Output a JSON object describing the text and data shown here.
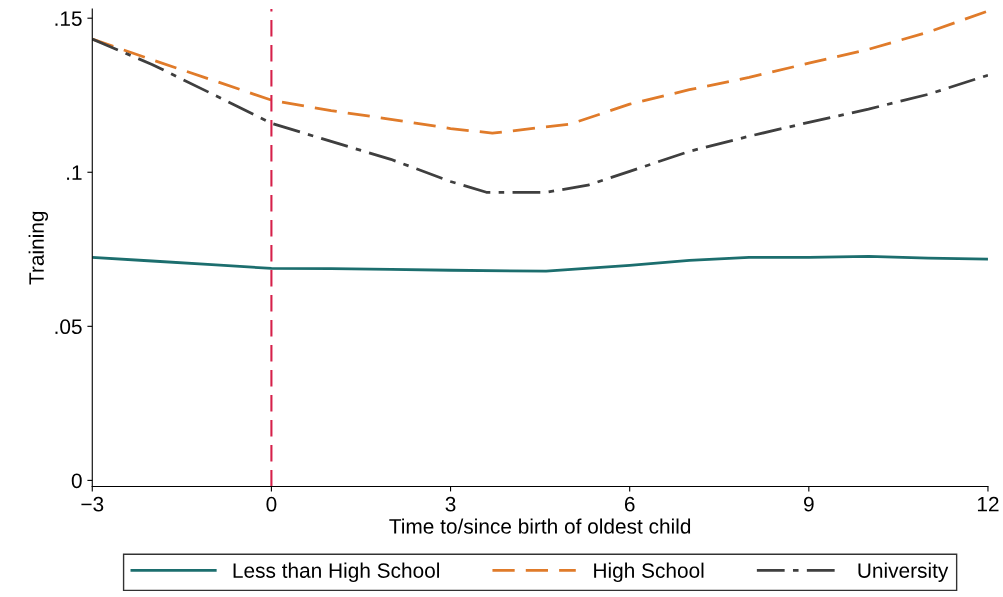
{
  "chart_data": {
    "type": "line",
    "xlabel": "Time to/since birth of oldest child",
    "ylabel": "Training",
    "xlim": [
      -3,
      12
    ],
    "xticks": [
      {
        "value": -3,
        "label": "−3"
      },
      0,
      3,
      6,
      9,
      12
    ],
    "ylim": [
      -0.002,
      0.153
    ],
    "yticks": [
      {
        "value": 0,
        "label": "0"
      },
      {
        "value": 0.05,
        "label": ".05"
      },
      {
        "value": 0.1,
        "label": ".1"
      },
      {
        "value": 0.15,
        "label": ".15"
      }
    ],
    "grid": false,
    "legend": "bottom",
    "ref_lines": [
      {
        "axis": "x",
        "value": 0,
        "color": "#d6204a",
        "line_style": "dashed"
      }
    ],
    "series": [
      {
        "name": "Less than High School",
        "color": "#1c6e6e",
        "line_style": "solid",
        "x": [
          -3,
          -2,
          -1,
          0,
          1,
          2,
          3,
          4.6,
          6,
          7,
          8,
          9,
          10,
          11,
          12
        ],
        "values": [
          0.0724,
          0.0712,
          0.07,
          0.0688,
          0.0687,
          0.0685,
          0.0682,
          0.0679,
          0.0698,
          0.0714,
          0.0724,
          0.0724,
          0.0727,
          0.0721,
          0.0718
        ]
      },
      {
        "name": "High School",
        "color": "#e07b2a",
        "line_style": "dashed",
        "x": [
          -3,
          -2,
          -1,
          0,
          1,
          2,
          3,
          3.7,
          5,
          6,
          7,
          8,
          9,
          10,
          11,
          12
        ],
        "values": [
          0.1432,
          0.1365,
          0.13,
          0.1234,
          0.12,
          0.1172,
          0.1142,
          0.1127,
          0.1156,
          0.1221,
          0.1268,
          0.1308,
          0.1354,
          0.1399,
          0.1455,
          0.1523
        ]
      },
      {
        "name": "University",
        "color": "#3f3f3f",
        "line_style": "dashdot",
        "x": [
          -3,
          -2,
          -1,
          0,
          1,
          2,
          3,
          3.6,
          4.6,
          5.3,
          6,
          7,
          8,
          9,
          10,
          11,
          12
        ],
        "values": [
          0.1432,
          0.135,
          0.1255,
          0.1159,
          0.11,
          0.1042,
          0.097,
          0.0935,
          0.0935,
          0.0958,
          0.1003,
          0.1068,
          0.1117,
          0.1162,
          0.1205,
          0.1253,
          0.1315
        ]
      }
    ]
  }
}
